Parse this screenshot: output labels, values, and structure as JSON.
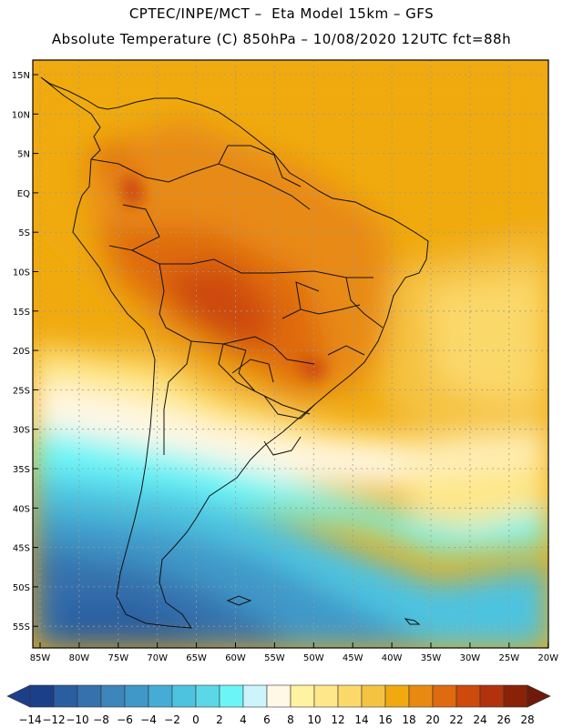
{
  "header": {
    "title_line1": "CPTEC/INPE/MCT –  Eta Model 15km – GFS",
    "title_line2": "Absolute Temperature (C) 850hPa – 10/08/2020 12UTC fct=88h"
  },
  "axes": {
    "lat_labels": [
      "15N",
      "10N",
      "5N",
      "EQ",
      "5S",
      "10S",
      "15S",
      "20S",
      "25S",
      "30S",
      "35S",
      "40S",
      "45S",
      "50S",
      "55S"
    ],
    "lon_labels": [
      "85W",
      "80W",
      "75W",
      "70W",
      "65W",
      "60W",
      "55W",
      "50W",
      "45W",
      "40W",
      "35W",
      "30W",
      "25W",
      "20W"
    ]
  },
  "colorbar": {
    "unit": "C",
    "labels": [
      "-14",
      "-12",
      "-10",
      "-8",
      "-6",
      "-4",
      "-2",
      "0",
      "2",
      "4",
      "6",
      "8",
      "10",
      "12",
      "14",
      "16",
      "18",
      "20",
      "22",
      "24",
      "26",
      "28"
    ],
    "colors": [
      "#1c3f8a",
      "#1c3f8a",
      "#2a5ea0",
      "#3571ad",
      "#3d85ba",
      "#3f98c8",
      "#45acd5",
      "#4dc3e0",
      "#5ad8e8",
      "#6cf5f7",
      "#cdf3fb",
      "#fff8e6",
      "#fff2a0",
      "#fee78a",
      "#fbd86a",
      "#f5c342",
      "#f0aa0f",
      "#e88a12",
      "#df6a10",
      "#cd4a0c",
      "#b2320d",
      "#8a2208",
      "#6e1a0a"
    ]
  }
}
